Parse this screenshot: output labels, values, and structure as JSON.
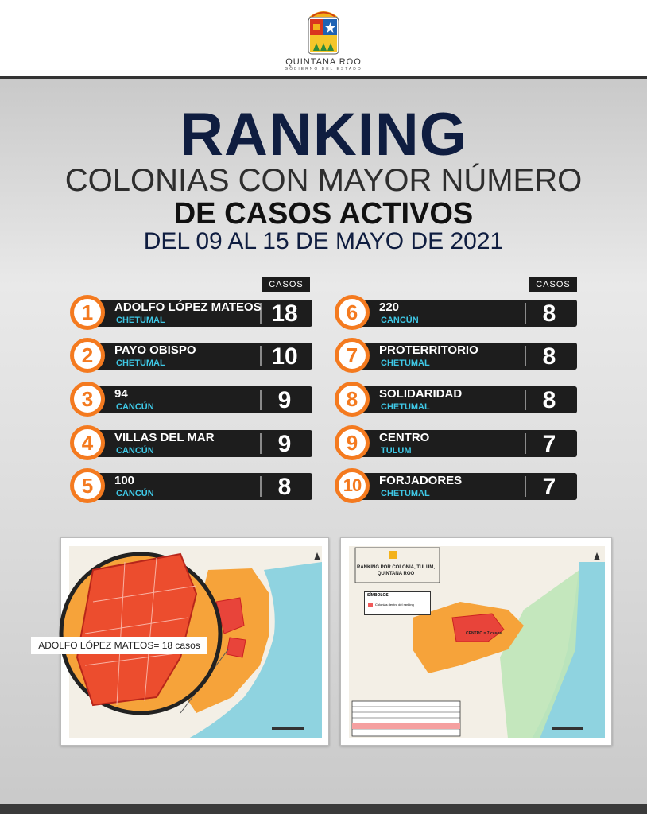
{
  "header": {
    "state_name": "QUINTANA ROO",
    "government": "GOBIERNO DEL ESTADO"
  },
  "title": {
    "main": "RANKING",
    "line1": "COLONIAS CON MAYOR NÚMERO",
    "line2": "DE CASOS ACTIVOS",
    "date": "DEL 09 AL 15 DE MAYO DE 2021"
  },
  "column_header": "CASOS",
  "ranking": [
    {
      "rank": "1",
      "colonia": "ADOLFO LÓPEZ MATEOS",
      "city": "CHETUMAL",
      "cases": "18"
    },
    {
      "rank": "2",
      "colonia": "PAYO OBISPO",
      "city": "CHETUMAL",
      "cases": "10"
    },
    {
      "rank": "3",
      "colonia": "94",
      "city": "CANCÚN",
      "cases": "9"
    },
    {
      "rank": "4",
      "colonia": "VILLAS DEL MAR",
      "city": "CANCÚN",
      "cases": "9"
    },
    {
      "rank": "5",
      "colonia": "100",
      "city": "CANCÚN",
      "cases": "8"
    },
    {
      "rank": "6",
      "colonia": "220",
      "city": "CANCÚN",
      "cases": "8"
    },
    {
      "rank": "7",
      "colonia": "PROTERRITORIO",
      "city": "CHETUMAL",
      "cases": "8"
    },
    {
      "rank": "8",
      "colonia": "SOLIDARIDAD",
      "city": "CHETUMAL",
      "cases": "8"
    },
    {
      "rank": "9",
      "colonia": "CENTRO",
      "city": "TULUM",
      "cases": "7"
    },
    {
      "rank": "10",
      "colonia": "FORJADORES",
      "city": "CHETUMAL",
      "cases": "7"
    }
  ],
  "map_chetumal": {
    "zoom_label": "ADOLFO LÓPEZ MATEOS= 18 casos"
  },
  "map_tulum": {
    "title": "RANKING POR COLONIA, TULUM, QUINTANA ROO",
    "symbols_header": "SÍMBOLOS",
    "symbols_item": "Colonias dentro del ranking",
    "area_label": "CENTRO = 7 casos"
  },
  "colors": {
    "navy": "#0f1d40",
    "orange": "#f47a1f",
    "cyan": "#3fc8e6",
    "bar": "#1d1d1d"
  }
}
